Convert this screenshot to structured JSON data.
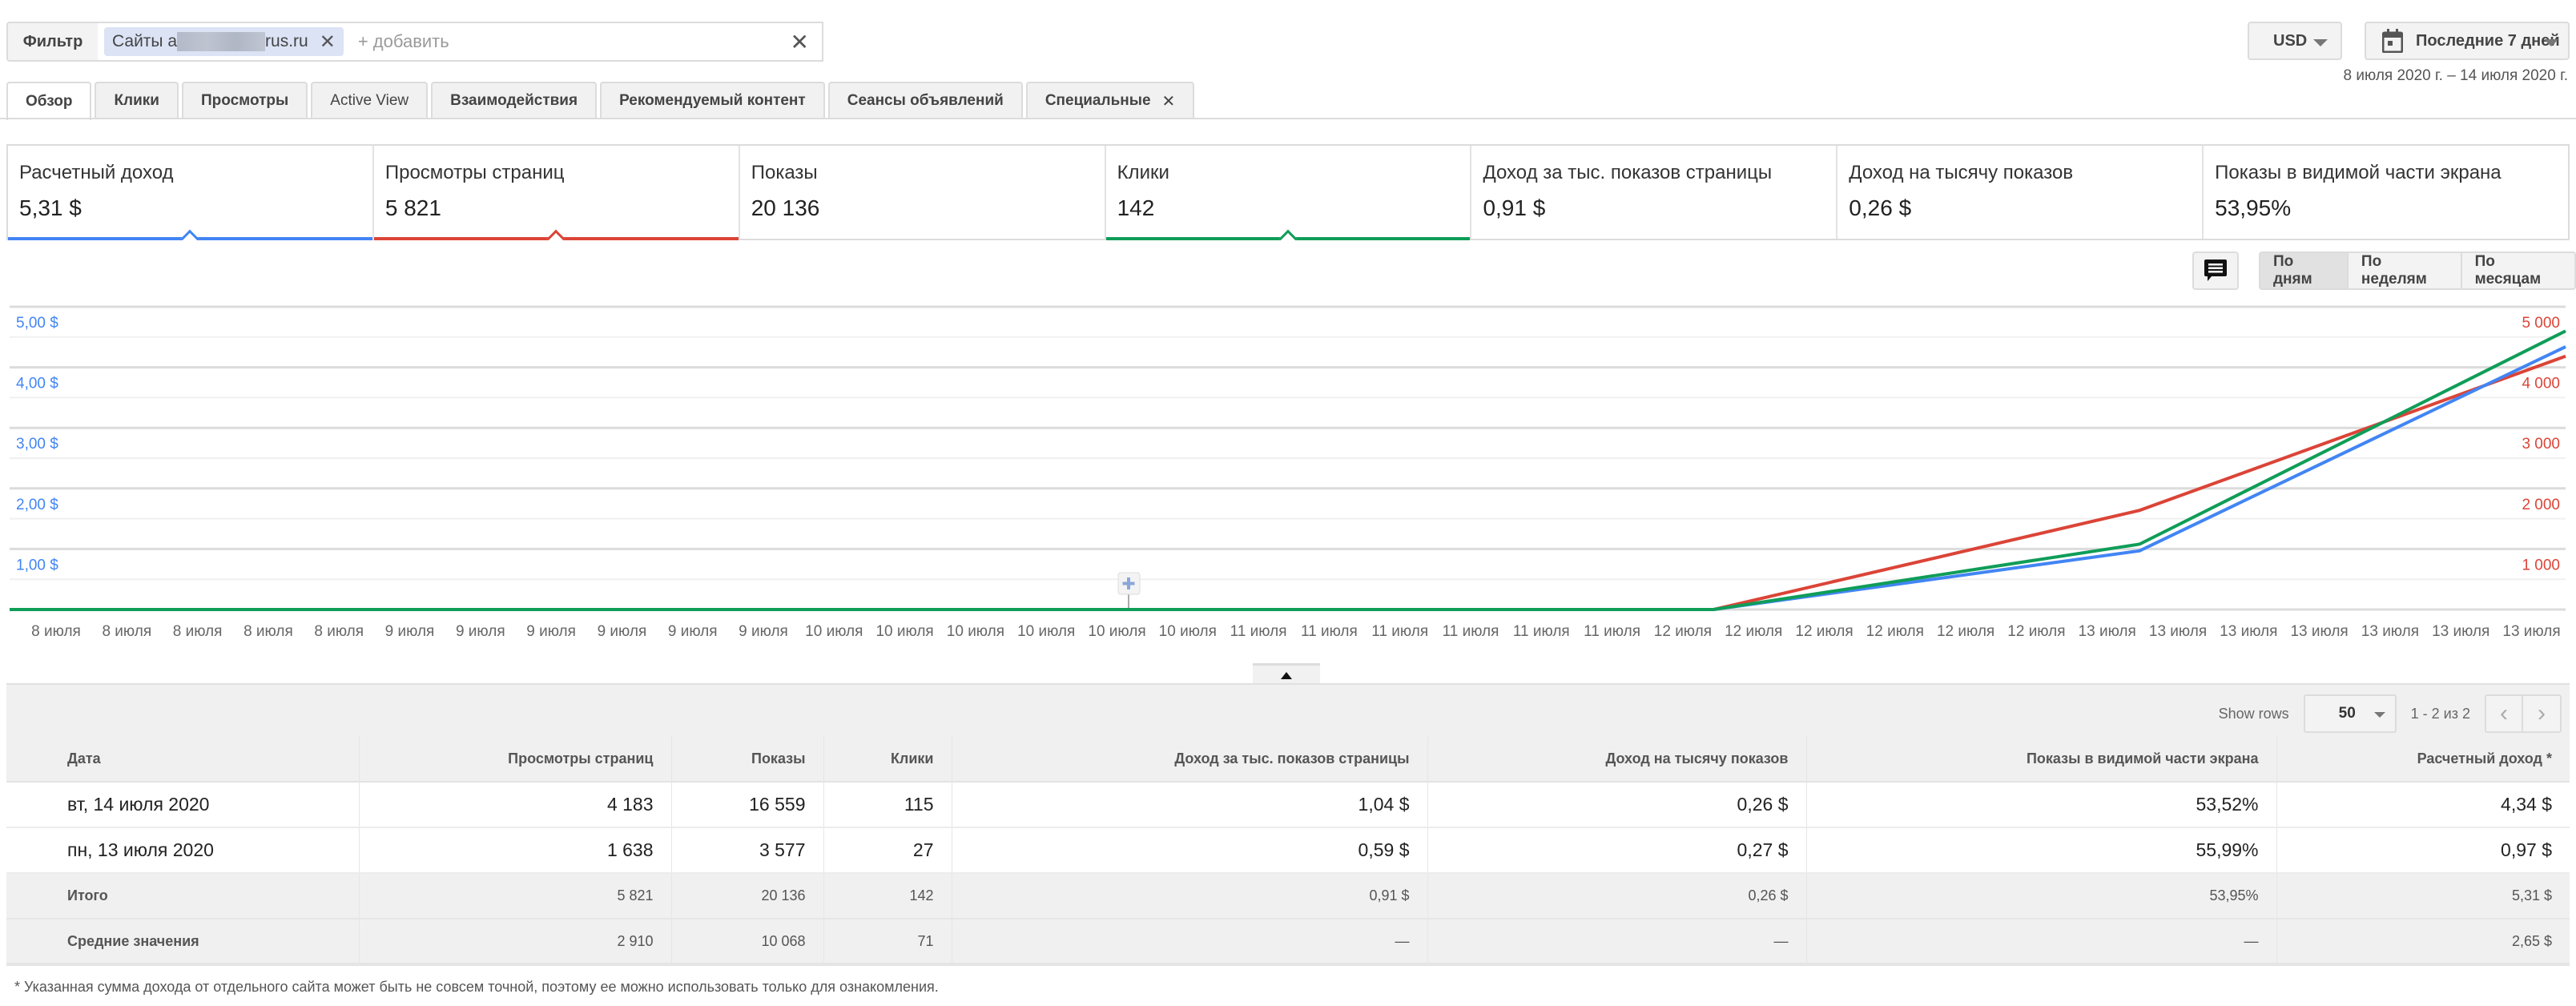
{
  "filter": {
    "button_label": "Фильтр",
    "chip_prefix": "Сайты a",
    "chip_suffix": "rus.ru",
    "add_placeholder": "+ добавить",
    "clear": "✕",
    "chip_close": "✕"
  },
  "currency": {
    "value": "USD"
  },
  "date_picker": {
    "label": "Последние 7 дней",
    "range": "8 июля 2020 г. – 14 июля 2020 г."
  },
  "tabs": [
    {
      "label": "Обзор"
    },
    {
      "label": "Клики"
    },
    {
      "label": "Просмотры"
    },
    {
      "label": "Active View"
    },
    {
      "label": "Взаимодействия"
    },
    {
      "label": "Рекомендуемый контент"
    },
    {
      "label": "Сеансы объявлений"
    },
    {
      "label": "Специальные",
      "close": "✕"
    }
  ],
  "scorecards": [
    {
      "label": "Расчетный доход",
      "value": "5,31 $",
      "color": "#4285f4"
    },
    {
      "label": "Просмотры страниц",
      "value": "5 821",
      "color": "#db4437"
    },
    {
      "label": "Показы",
      "value": "20 136"
    },
    {
      "label": "Клики",
      "value": "142",
      "color": "#0f9d58"
    },
    {
      "label": "Доход за тыс. показов страницы",
      "value": "0,91 $"
    },
    {
      "label": "Доход на тысячу показов",
      "value": "0,26 $"
    },
    {
      "label": "Показы в видимой части экрана",
      "value": "53,95%"
    }
  ],
  "period": {
    "days": "По дням",
    "weeks": "По неделям",
    "months": "По месяцам"
  },
  "chart_data": {
    "type": "line",
    "x": [
      "8 июля",
      "9 июля",
      "10 июля",
      "11 июля",
      "12 июля",
      "13 июля",
      "14 июля"
    ],
    "x_tick_labels": [
      "8 июля",
      "8 июля",
      "8 июля",
      "8 июля",
      "8 июля",
      "9 июля",
      "9 июля",
      "9 июля",
      "9 июля",
      "9 июля",
      "9 июля",
      "10 июля",
      "10 июля",
      "10 июля",
      "10 июля",
      "10 июля",
      "10 июля",
      "11 июля",
      "11 июля",
      "11 июля",
      "11 июля",
      "11 июля",
      "11 июля",
      "12 июля",
      "12 июля",
      "12 июля",
      "12 июля",
      "12 июля",
      "12 июля",
      "13 июля",
      "13 июля",
      "13 июля",
      "13 июля",
      "13 июля",
      "13 июля",
      "13 июля"
    ],
    "left_axis": {
      "ticks": [
        "5,00 $",
        "4,00 $",
        "3,00 $",
        "2,00 $",
        "1,00 $"
      ],
      "range": [
        0,
        5
      ],
      "color": "#4285f4"
    },
    "right_axis": {
      "ticks": [
        "5 000",
        "4 000",
        "3 000",
        "2 000",
        "1 000"
      ],
      "range": [
        0,
        5000
      ],
      "color": "#db4437"
    },
    "series": [
      {
        "name": "Расчетный доход",
        "values": [
          0,
          0,
          0,
          0,
          0,
          0.97,
          4.34
        ],
        "color": "#4285f4",
        "max": 5
      },
      {
        "name": "Просмотры страниц",
        "values": [
          0,
          0,
          0,
          0,
          0,
          1638,
          4183
        ],
        "color": "#db4437",
        "max": 5000
      },
      {
        "name": "Клики",
        "values": [
          0,
          0,
          0,
          0,
          0,
          27,
          115
        ],
        "color": "#0f9d58",
        "max": 125
      }
    ],
    "grid": true
  },
  "table": {
    "show_rows_label": "Show rows",
    "rows_value": "50",
    "range": "1 - 2 из 2",
    "headers": [
      "Дата",
      "Просмотры страниц",
      "Показы",
      "Клики",
      "Доход за тыс. показов страницы",
      "Доход на тысячу показов",
      "Показы в видимой части экрана",
      "Расчетный доход *"
    ],
    "rows": [
      [
        "вт, 14 июля 2020",
        "4 183",
        "16 559",
        "115",
        "1,04 $",
        "0,26 $",
        "53,52%",
        "4,34 $"
      ],
      [
        "пн, 13 июля 2020",
        "1 638",
        "3 577",
        "27",
        "0,59 $",
        "0,27 $",
        "55,99%",
        "0,97 $"
      ]
    ],
    "totals": [
      "Итого",
      "5 821",
      "20 136",
      "142",
      "0,91 $",
      "0,26 $",
      "53,95%",
      "5,31 $"
    ],
    "averages": [
      "Средние значения",
      "2 910",
      "10 068",
      "71",
      "—",
      "—",
      "—",
      "2,65 $"
    ]
  },
  "footnote": "* Указанная сумма дохода от отдельного сайта может быть не совсем точной, поэтому ее можно использовать только для ознакомления."
}
